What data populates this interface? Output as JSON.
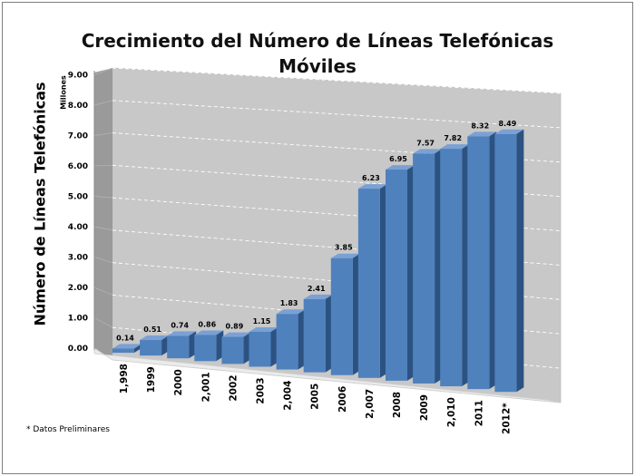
{
  "chart_data": {
    "type": "bar",
    "title": "Crecimiento del Número de Líneas Telefónicas Móviles",
    "title_line1": "Crecimiento del Número de Líneas Telefónicas",
    "title_line2": "Móviles",
    "ylabel": "Número de Líneas Telefónicas",
    "yunit": "Millones",
    "categories": [
      "1,998",
      "1999",
      "2000",
      "2,001",
      "2002",
      "2003",
      "2,004",
      "2005",
      "2006",
      "2,007",
      "2008",
      "2009",
      "2,010",
      "2011",
      "2012*"
    ],
    "values": [
      0.14,
      0.51,
      0.74,
      0.86,
      0.89,
      1.15,
      1.83,
      2.41,
      3.85,
      6.23,
      6.95,
      7.57,
      7.82,
      8.32,
      8.49
    ],
    "value_labels": [
      "0.14",
      "0.51",
      "0.74",
      "0.86",
      "0.89",
      "1.15",
      "1.83",
      "2.41",
      "3.85",
      "6.23",
      "6.95",
      "7.57",
      "7.82",
      "8.32",
      "8.49"
    ],
    "yticks": [
      "0.00",
      "1.00",
      "2.00",
      "3.00",
      "4.00",
      "5.00",
      "6.00",
      "7.00",
      "8.00",
      "9.00"
    ],
    "ylim": [
      0,
      9
    ],
    "grid": true,
    "legend": "none",
    "style": "3d-column",
    "colors": {
      "bar_front": "#4f81bd",
      "bar_side": "#2c5282",
      "bar_top": "#7ba1d4",
      "back_wall": "#c8c8c8",
      "side_wall": "#9a9a9a",
      "floor": "#ebebeb"
    }
  },
  "footnote": "* Datos Preliminares"
}
